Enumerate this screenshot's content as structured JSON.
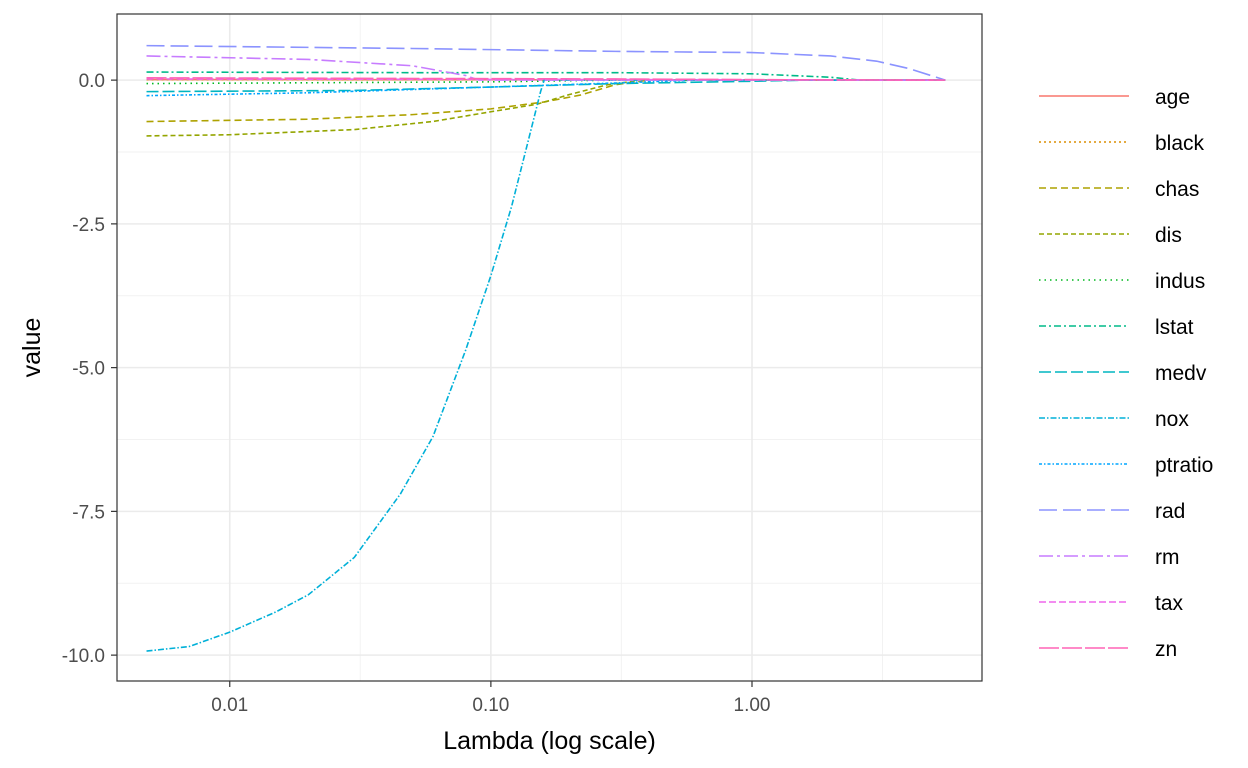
{
  "chart_data": {
    "type": "line",
    "xlabel": "Lambda (log scale)",
    "ylabel": "value",
    "x_scale": "log10",
    "xlim": [
      0.0037,
      7.6
    ],
    "ylim": [
      -10.45,
      1.15
    ],
    "x_ticks": [
      {
        "value": 0.01,
        "label": "0.01"
      },
      {
        "value": 0.1,
        "label": "0.10"
      },
      {
        "value": 1,
        "label": "1.00"
      }
    ],
    "x_minor_ticks": [
      0.00316,
      0.0316,
      0.316,
      3.16
    ],
    "y_ticks": [
      {
        "value": 0,
        "label": "0.0"
      },
      {
        "value": -2.5,
        "label": "-2.5"
      },
      {
        "value": -5,
        "label": "-5.0"
      },
      {
        "value": -7.5,
        "label": "-7.5"
      },
      {
        "value": -10,
        "label": "-10.0"
      }
    ],
    "y_minor_ticks": [
      -1.25,
      -3.75,
      -6.25,
      -8.75
    ],
    "grid": true,
    "legend_position": "right",
    "series": [
      {
        "name": "age",
        "color": "#F8766D",
        "dash": "",
        "points": [
          [
            0.0048,
            0.01
          ],
          [
            0.5,
            0.005
          ],
          [
            5.5,
            0
          ]
        ]
      },
      {
        "name": "black",
        "color": "#DB8E00",
        "dash": "2 3",
        "points": [
          [
            0.0048,
            0.01
          ],
          [
            0.5,
            0.005
          ],
          [
            5.5,
            0
          ]
        ]
      },
      {
        "name": "chas",
        "color": "#AEA200",
        "dash": "7 4",
        "points": [
          [
            0.0048,
            -0.72
          ],
          [
            0.02,
            -0.68
          ],
          [
            0.05,
            -0.6
          ],
          [
            0.1,
            -0.5
          ],
          [
            0.16,
            -0.38
          ],
          [
            0.22,
            -0.26
          ],
          [
            0.3,
            -0.08
          ],
          [
            0.4,
            0
          ],
          [
            5.5,
            0
          ]
        ]
      },
      {
        "name": "dis",
        "color": "#94A500",
        "dash": "5 3",
        "points": [
          [
            0.0048,
            -0.97
          ],
          [
            0.01,
            -0.95
          ],
          [
            0.03,
            -0.86
          ],
          [
            0.06,
            -0.72
          ],
          [
            0.1,
            -0.55
          ],
          [
            0.15,
            -0.42
          ],
          [
            0.2,
            -0.25
          ],
          [
            0.28,
            -0.08
          ],
          [
            0.38,
            0
          ],
          [
            5.5,
            0
          ]
        ]
      },
      {
        "name": "indus",
        "color": "#00B81F",
        "dash": "1.5 4",
        "points": [
          [
            0.0048,
            -0.06
          ],
          [
            0.1,
            -0.03
          ],
          [
            0.2,
            -0.01
          ],
          [
            0.3,
            0
          ],
          [
            5.5,
            0
          ]
        ]
      },
      {
        "name": "lstat",
        "color": "#00BA88",
        "dash": "7 3 2 3",
        "points": [
          [
            0.0048,
            0.14
          ],
          [
            0.05,
            0.13
          ],
          [
            0.3,
            0.13
          ],
          [
            1.0,
            0.11
          ],
          [
            2.0,
            0.05
          ],
          [
            2.6,
            0
          ],
          [
            5.5,
            0
          ]
        ]
      },
      {
        "name": "medv",
        "color": "#00B5C0",
        "dash": "12 4",
        "points": [
          [
            0.0048,
            -0.2
          ],
          [
            0.03,
            -0.18
          ],
          [
            0.1,
            -0.12
          ],
          [
            0.3,
            -0.06
          ],
          [
            1.0,
            -0.02
          ],
          [
            1.6,
            0
          ],
          [
            5.5,
            0
          ]
        ]
      },
      {
        "name": "nox",
        "color": "#00B0D8",
        "dash": "6 2 1.5 2",
        "points": [
          [
            0.0048,
            -9.93
          ],
          [
            0.007,
            -9.85
          ],
          [
            0.01,
            -9.6
          ],
          [
            0.015,
            -9.25
          ],
          [
            0.02,
            -8.95
          ],
          [
            0.03,
            -8.3
          ],
          [
            0.045,
            -7.2
          ],
          [
            0.06,
            -6.2
          ],
          [
            0.08,
            -4.7
          ],
          [
            0.1,
            -3.4
          ],
          [
            0.12,
            -2.2
          ],
          [
            0.14,
            -1.0
          ],
          [
            0.155,
            -0.2
          ],
          [
            0.16,
            0
          ],
          [
            5.5,
            0
          ]
        ]
      },
      {
        "name": "ptratio",
        "color": "#00A6FF",
        "dash": "3 2 1.5 2",
        "points": [
          [
            0.0048,
            -0.27
          ],
          [
            0.02,
            -0.22
          ],
          [
            0.1,
            -0.12
          ],
          [
            0.3,
            -0.05
          ],
          [
            0.6,
            0
          ],
          [
            5.5,
            0
          ]
        ]
      },
      {
        "name": "rad",
        "color": "#8B93FF",
        "dash": "18 6",
        "points": [
          [
            0.0048,
            0.6
          ],
          [
            0.05,
            0.55
          ],
          [
            0.3,
            0.5
          ],
          [
            1.0,
            0.48
          ],
          [
            2.0,
            0.42
          ],
          [
            3.0,
            0.33
          ],
          [
            4.0,
            0.2
          ],
          [
            5.5,
            0
          ]
        ]
      },
      {
        "name": "rm",
        "color": "#C77CFF",
        "dash": "14 4 3 4",
        "points": [
          [
            0.0048,
            0.42
          ],
          [
            0.02,
            0.36
          ],
          [
            0.05,
            0.25
          ],
          [
            0.08,
            0.08
          ],
          [
            0.09,
            0
          ],
          [
            5.5,
            0
          ]
        ]
      },
      {
        "name": "tax",
        "color": "#EF67EB",
        "dash": "7 3",
        "points": [
          [
            0.0048,
            0.02
          ],
          [
            0.3,
            0.01
          ],
          [
            5.5,
            0
          ]
        ]
      },
      {
        "name": "zn",
        "color": "#FF63B6",
        "dash": "20 3",
        "points": [
          [
            0.0048,
            0.04
          ],
          [
            0.3,
            0.02
          ],
          [
            1.5,
            0.005
          ],
          [
            5.5,
            0
          ]
        ]
      }
    ]
  }
}
